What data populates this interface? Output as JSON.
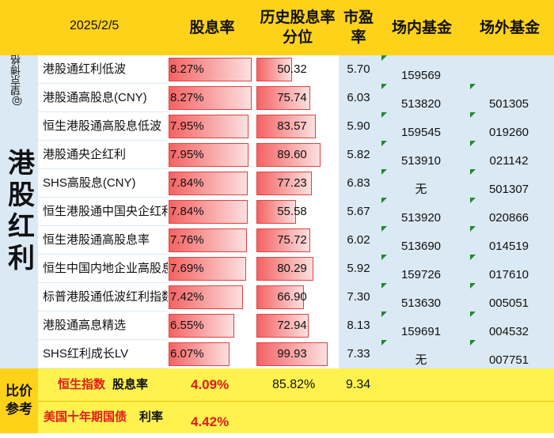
{
  "header": {
    "watermark": "@望京博格",
    "date": "2025/2/5",
    "col_yield": "股息率",
    "col_pct": "历史股息率分位",
    "col_pe": "市盈率",
    "col_fund_in": "场内基金",
    "col_fund_out": "场外基金"
  },
  "category_label": "港股红利",
  "rows": [
    {
      "name": "港股通红利低波",
      "yield": "8.27%",
      "yield_value": 8.27,
      "percentile": "50.32",
      "pe": "5.70",
      "fund_in": "159569",
      "fund_out": ""
    },
    {
      "name": "港股通高股息(CNY)",
      "yield": "8.27%",
      "yield_value": 8.27,
      "percentile": "75.74",
      "pe": "6.03",
      "fund_in": "513820",
      "fund_out": "501305"
    },
    {
      "name": "恒生港股通高股息低波",
      "yield": "7.95%",
      "yield_value": 7.95,
      "percentile": "83.57",
      "pe": "5.90",
      "fund_in": "159545",
      "fund_out": "019260"
    },
    {
      "name": "港股通央企红利",
      "yield": "7.95%",
      "yield_value": 7.95,
      "percentile": "89.60",
      "pe": "5.82",
      "fund_in": "513910",
      "fund_out": "021142"
    },
    {
      "name": "SHS高股息(CNY)",
      "yield": "7.84%",
      "yield_value": 7.84,
      "percentile": "77.23",
      "pe": "6.83",
      "fund_in": "无",
      "fund_out": "501307"
    },
    {
      "name": "恒生港股通中国央企红利",
      "yield": "7.84%",
      "yield_value": 7.84,
      "percentile": "55.58",
      "pe": "5.67",
      "fund_in": "513920",
      "fund_out": "020866"
    },
    {
      "name": "恒生港股通高股息率",
      "yield": "7.76%",
      "yield_value": 7.76,
      "percentile": "75.72",
      "pe": "6.02",
      "fund_in": "513690",
      "fund_out": "014519"
    },
    {
      "name": "恒生中国内地企业高股息",
      "yield": "7.69%",
      "yield_value": 7.69,
      "percentile": "80.29",
      "pe": "5.92",
      "fund_in": "159726",
      "fund_out": "017610"
    },
    {
      "name": "标普港股通低波红利指数",
      "yield": "7.42%",
      "yield_value": 7.42,
      "percentile": "66.90",
      "pe": "7.30",
      "fund_in": "513630",
      "fund_out": "005051"
    },
    {
      "name": "港股通高息精选",
      "yield": "6.55%",
      "yield_value": 6.55,
      "percentile": "72.94",
      "pe": "8.13",
      "fund_in": "159691",
      "fund_out": "004532"
    },
    {
      "name": "SHS红利成长LV",
      "yield": "6.07%",
      "yield_value": 6.07,
      "percentile": "99.93",
      "pe": "7.33",
      "fund_in": "无",
      "fund_out": "007751"
    }
  ],
  "reference": {
    "label_line1": "比价",
    "label_line2": "参考",
    "hsi_name": "恒生指数",
    "hsi_suffix": "股息率",
    "hsi_yield": "4.09%",
    "hsi_percentile": "85.82%",
    "hsi_pe": "9.34",
    "us_name": "美国十年期国债",
    "us_suffix": "利率",
    "us_rate": "4.42%"
  },
  "colors": {
    "header_bg": "#ffd21a",
    "body_bg": "#dbe9f4",
    "bar_red": "#f46363",
    "reference_bg": "#fff24f",
    "highlight_red": "#e21a1a",
    "marker_green": "#1f8a2c"
  }
}
